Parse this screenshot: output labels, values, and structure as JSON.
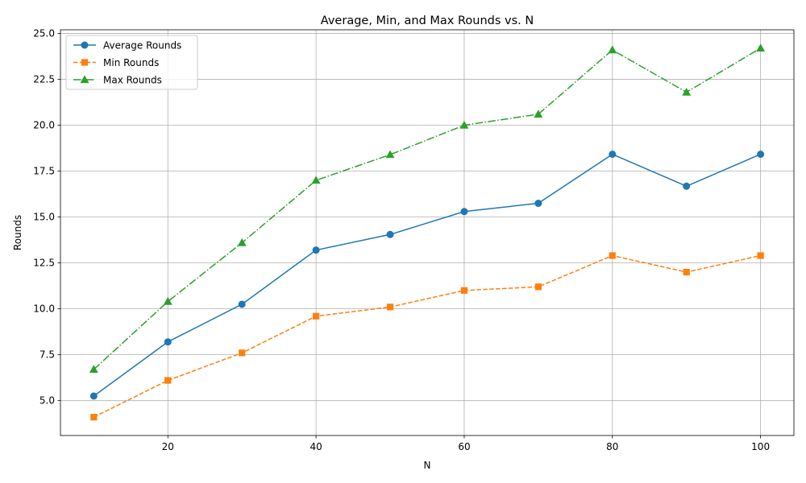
{
  "chart_data": {
    "type": "line",
    "title": "Average, Min, and Max Rounds vs. N",
    "xlabel": "N",
    "ylabel": "Rounds",
    "x": [
      10,
      20,
      30,
      40,
      50,
      60,
      70,
      80,
      90,
      100
    ],
    "xlim": [
      5.5,
      104.5
    ],
    "ylim": [
      3.1,
      25.2
    ],
    "xticks": [
      20,
      40,
      60,
      80,
      100
    ],
    "yticks": [
      5.0,
      7.5,
      10.0,
      12.5,
      15.0,
      17.5,
      20.0,
      22.5,
      25.0
    ],
    "ytick_labels": [
      "5.0",
      "7.5",
      "10.0",
      "12.5",
      "15.0",
      "17.5",
      "20.0",
      "22.5",
      "25.0"
    ],
    "grid": true,
    "legend_position": "upper-left",
    "series": [
      {
        "name": "Average Rounds",
        "color": "#1f77b4",
        "marker": "circle",
        "linestyle": "solid",
        "values": [
          5.25,
          8.2,
          10.25,
          13.2,
          14.05,
          15.3,
          15.75,
          18.42,
          16.68,
          18.42
        ]
      },
      {
        "name": "Min Rounds",
        "color": "#ff7f0e",
        "marker": "square",
        "linestyle": "dashed",
        "values": [
          4.1,
          6.1,
          7.6,
          9.6,
          10.1,
          11.0,
          11.2,
          12.9,
          12.0,
          12.9
        ]
      },
      {
        "name": "Max Rounds",
        "color": "#2ca02c",
        "marker": "triangle",
        "linestyle": "dashdot",
        "values": [
          6.7,
          10.4,
          13.6,
          17.0,
          18.4,
          20.0,
          20.6,
          24.1,
          21.8,
          24.2
        ]
      }
    ]
  }
}
